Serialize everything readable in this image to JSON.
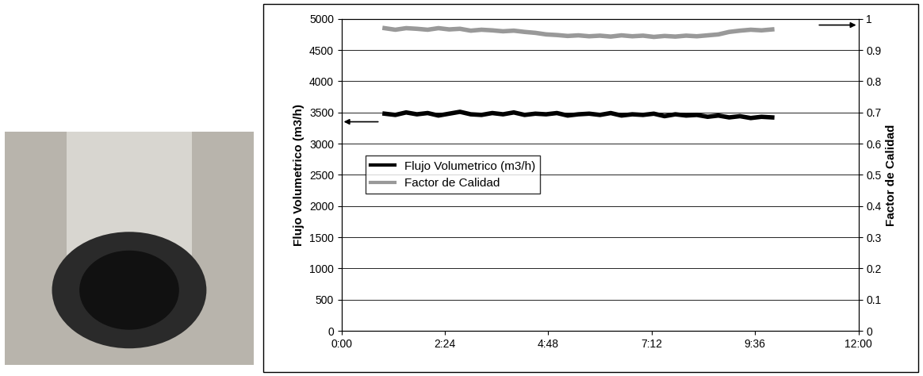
{
  "chart_data": {
    "type": "line",
    "x": [
      1.0,
      1.25,
      1.5,
      1.75,
      2.0,
      2.25,
      2.5,
      2.75,
      3.0,
      3.25,
      3.5,
      3.75,
      4.0,
      4.25,
      4.5,
      4.75,
      5.0,
      5.25,
      5.5,
      5.75,
      6.0,
      6.25,
      6.5,
      6.75,
      7.0,
      7.25,
      7.5,
      7.75,
      8.0,
      8.25,
      8.5,
      8.75,
      9.0,
      9.25,
      9.5,
      9.75,
      10.0
    ],
    "series": [
      {
        "name": "Flujo Volumetrico (m3/h)",
        "color": "#000000",
        "line_style": "solid",
        "values": [
          3480,
          3460,
          3500,
          3470,
          3490,
          3450,
          3480,
          3510,
          3470,
          3460,
          3490,
          3470,
          3500,
          3460,
          3480,
          3470,
          3490,
          3450,
          3470,
          3480,
          3460,
          3490,
          3450,
          3470,
          3460,
          3480,
          3440,
          3470,
          3450,
          3460,
          3430,
          3450,
          3420,
          3440,
          3410,
          3430,
          3420
        ]
      },
      {
        "name": "Factor de Calidad",
        "color": "#999999",
        "line_style": "solid",
        "axis": "y2",
        "values": [
          0.97,
          0.965,
          0.97,
          0.968,
          0.965,
          0.97,
          0.966,
          0.968,
          0.962,
          0.965,
          0.963,
          0.96,
          0.962,
          0.958,
          0.955,
          0.95,
          0.948,
          0.945,
          0.947,
          0.944,
          0.946,
          0.943,
          0.947,
          0.944,
          0.946,
          0.942,
          0.945,
          0.943,
          0.946,
          0.944,
          0.947,
          0.95,
          0.958,
          0.962,
          0.965,
          0.963,
          0.966
        ]
      }
    ],
    "y_label": "Flujo Volumetrico (m3/h)",
    "y2_label": "Factor de Calidad",
    "xlim": [
      0,
      12
    ],
    "xticks": [
      {
        "value": 0,
        "label": "0:00"
      },
      {
        "value": 2.4,
        "label": "2:24"
      },
      {
        "value": 4.8,
        "label": "4:48"
      },
      {
        "value": 7.2,
        "label": "7:12"
      },
      {
        "value": 9.6,
        "label": "9:36"
      },
      {
        "value": 12,
        "label": "12:00"
      }
    ],
    "ylim": [
      0,
      5000
    ],
    "yticks": [
      0,
      500,
      1000,
      1500,
      2000,
      2500,
      3000,
      3500,
      4000,
      4500,
      5000
    ],
    "y2lim": [
      0,
      1
    ],
    "y2ticks": [
      0,
      0.1,
      0.2,
      0.3,
      0.4,
      0.5,
      0.6,
      0.7,
      0.8,
      0.9,
      1
    ],
    "grid": true,
    "legend": "center left"
  }
}
